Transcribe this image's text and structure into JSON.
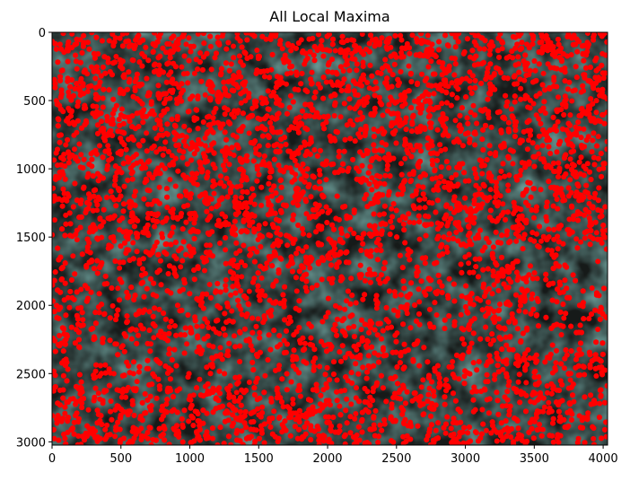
{
  "chart_data": {
    "type": "scatter",
    "title": "All Local Maxima",
    "xlabel": "",
    "ylabel": "",
    "xlim": [
      0,
      4032
    ],
    "ylim": [
      3024,
      0
    ],
    "x_ticks": [
      0,
      500,
      1000,
      1500,
      2000,
      2500,
      3000,
      3500,
      4000
    ],
    "x_tick_labels": [
      "0",
      "500",
      "1000",
      "1500",
      "2000",
      "2500",
      "3000",
      "3500",
      "4000"
    ],
    "y_ticks": [
      0,
      500,
      1000,
      1500,
      2000,
      2500,
      3000
    ],
    "y_tick_labels": [
      "0",
      "500",
      "1000",
      "1500",
      "2000",
      "2500",
      "3000"
    ],
    "grid": false,
    "background_image": "dark teal-grey grayscale texture image",
    "series": [
      {
        "marker_color": "#ff0000",
        "marker": "circle",
        "point_count_approx": 9000,
        "distribution": "dense, near-uniform across image; sparser gaps around (2100, 1150), (1900, 2000), (2800, 2300), (3900, 1700)"
      }
    ]
  }
}
